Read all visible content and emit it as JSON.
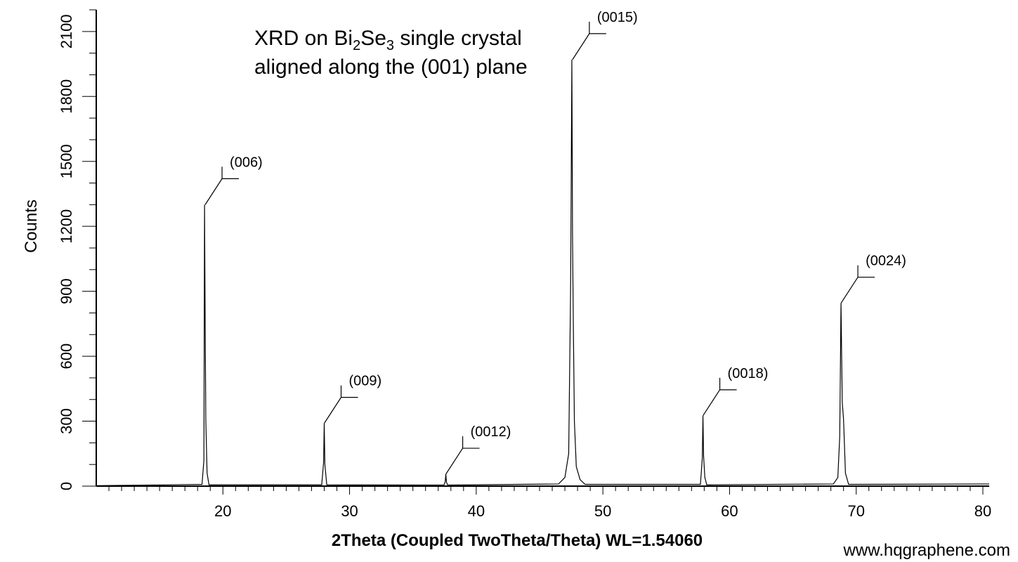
{
  "chart_data": {
    "type": "line",
    "title_parts": [
      "XRD on Bi",
      "2",
      "Se",
      "3",
      " single crystal"
    ],
    "title_line2": "aligned along the (001) plane",
    "xlabel": "2Theta (Coupled TwoTheta/Theta) WL=1.54060",
    "ylabel": "Counts",
    "xlim": [
      10,
      80.5
    ],
    "ylim": [
      0,
      2200
    ],
    "x_ticks": [
      20,
      30,
      40,
      50,
      60,
      70,
      80
    ],
    "y_ticks": [
      0,
      300,
      600,
      900,
      1200,
      1500,
      1800,
      2100
    ],
    "peaks": [
      {
        "label": "(006)",
        "x": 18.6,
        "y": 1300
      },
      {
        "label": "(009)",
        "x": 28.0,
        "y": 290
      },
      {
        "label": "(0012)",
        "x": 37.6,
        "y": 55
      },
      {
        "label": "(0015)",
        "x": 47.6,
        "y": 1970
      },
      {
        "label": "(0018)",
        "x": 57.9,
        "y": 325
      },
      {
        "label": "(0024)",
        "x": 68.8,
        "y": 845
      }
    ],
    "series": [
      {
        "x": [
          10,
          18.35,
          18.5,
          18.55,
          18.6,
          18.65,
          18.75,
          18.9,
          27.8,
          27.95,
          28.0,
          28.05,
          28.2,
          37.45,
          37.55,
          37.6,
          37.65,
          37.75,
          46.5,
          47.0,
          47.3,
          47.45,
          47.55,
          47.6,
          47.65,
          47.75,
          47.9,
          48.2,
          48.6,
          57.7,
          57.85,
          57.9,
          57.95,
          58.05,
          58.2,
          68.2,
          68.55,
          68.7,
          68.8,
          68.9,
          69.0,
          69.15,
          69.4,
          80.5
        ],
        "y": [
          2,
          8,
          120,
          1300,
          740,
          300,
          60,
          6,
          6,
          110,
          290,
          100,
          6,
          5,
          20,
          55,
          18,
          5,
          10,
          40,
          150,
          900,
          1970,
          1180,
          840,
          300,
          90,
          30,
          8,
          8,
          130,
          325,
          140,
          40,
          6,
          10,
          40,
          230,
          845,
          385,
          310,
          60,
          8,
          10
        ]
      }
    ]
  },
  "watermark": "www.hqgraphene.com"
}
